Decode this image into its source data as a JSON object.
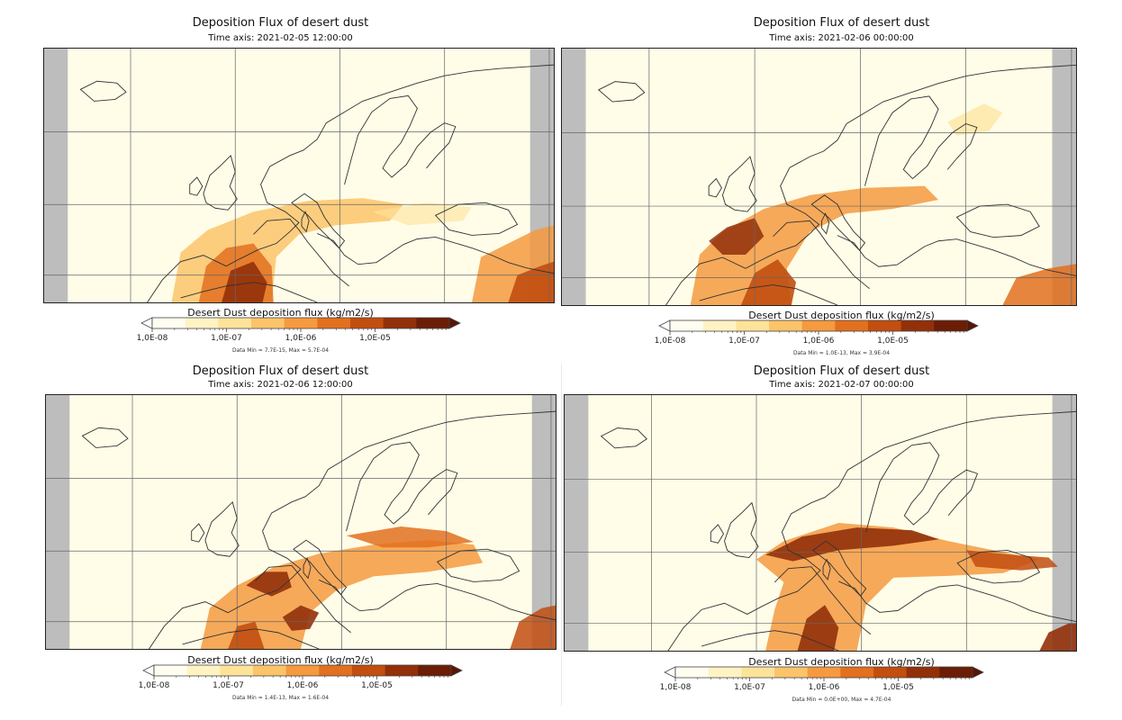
{
  "panels": [
    {
      "title": "Deposition Flux of desert dust",
      "time_axis": "Time axis: 2021-02-05 12:00:00",
      "colorbar_title": "Desert Dust deposition flux (kg/m2/s)",
      "minmax": "Data Min = 7.7E-15, Max = 5.7E-04"
    },
    {
      "title": "Deposition Flux of desert dust",
      "time_axis": "Time axis: 2021-02-06 00:00:00",
      "colorbar_title": "Desert Dust deposition flux (kg/m2/s)",
      "minmax": "Data Min = 1.0E-13, Max = 3.9E-04"
    },
    {
      "title": "Deposition Flux of desert dust",
      "time_axis": "Time axis: 2021-02-06 12:00:00",
      "colorbar_title": "Desert Dust deposition flux (kg/m2/s)",
      "minmax": "Data Min = 1.4E-13, Max = 1.6E-04"
    },
    {
      "title": "Deposition Flux of desert dust",
      "time_axis": "Time axis: 2021-02-07 00:00:00",
      "colorbar_title": "Desert Dust deposition flux (kg/m2/s)",
      "minmax": "Data Min = 0.0E+00, Max = 4.7E-04"
    }
  ],
  "colorbar": {
    "tick_labels": [
      "1,0E-08",
      "1,0E-07",
      "1,0E-06",
      "1,0E-05"
    ],
    "colors": [
      "#fffdf0",
      "#fff3c4",
      "#fde39a",
      "#fbc46a",
      "#f59a3f",
      "#e2701f",
      "#c24e10",
      "#92300a",
      "#6b1d05"
    ],
    "under_color": "#ffffff",
    "over_color": "#5a1504"
  },
  "map_colors": {
    "background": "#fffde8",
    "no_data": "#bdbdbd",
    "grid": "#666666",
    "coast": "#333333"
  }
}
